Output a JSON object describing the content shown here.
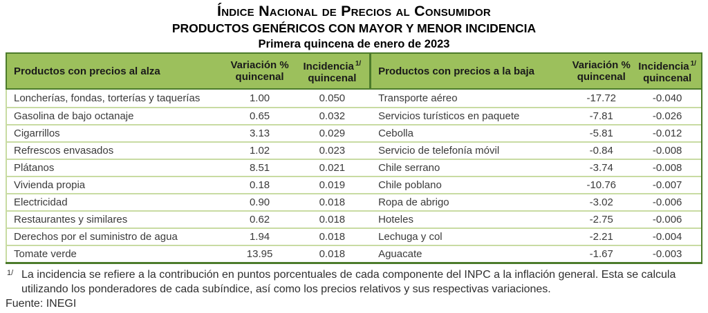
{
  "title": {
    "line1": "Índice Nacional de Precios al Consumidor",
    "line2": "PRODUCTOS GENÉRICOS CON MAYOR Y MENOR INCIDENCIA",
    "line3": "Primera quincena de enero de 2023"
  },
  "headers": {
    "alza": "Productos con precios al alza",
    "baja": "Productos con precios a la baja",
    "variacion_line1": "Variación %",
    "variacion_line2": "quincenal",
    "incidencia_line1": "Incidencia",
    "incidencia_sup": "1/",
    "incidencia_line2": "quincenal"
  },
  "rows": [
    {
      "alza": "Loncherías, fondas, torterías y taquerías",
      "alza_var": "1.00",
      "alza_inc": "0.050",
      "baja": "Transporte aéreo",
      "baja_var": "-17.72",
      "baja_inc": "-0.040"
    },
    {
      "alza": "Gasolina de bajo octanaje",
      "alza_var": "0.65",
      "alza_inc": "0.032",
      "baja": "Servicios turísticos en paquete",
      "baja_var": "-7.81",
      "baja_inc": "-0.026"
    },
    {
      "alza": "Cigarrillos",
      "alza_var": "3.13",
      "alza_inc": "0.029",
      "baja": "Cebolla",
      "baja_var": "-5.81",
      "baja_inc": "-0.012"
    },
    {
      "alza": "Refrescos envasados",
      "alza_var": "1.02",
      "alza_inc": "0.023",
      "baja": "Servicio de telefonía móvil",
      "baja_var": "-0.84",
      "baja_inc": "-0.008"
    },
    {
      "alza": "Plátanos",
      "alza_var": "8.51",
      "alza_inc": "0.021",
      "baja": "Chile serrano",
      "baja_var": "-3.74",
      "baja_inc": "-0.008"
    },
    {
      "alza": "Vivienda propia",
      "alza_var": "0.18",
      "alza_inc": "0.019",
      "baja": "Chile poblano",
      "baja_var": "-10.76",
      "baja_inc": "-0.007"
    },
    {
      "alza": "Electricidad",
      "alza_var": "0.90",
      "alza_inc": "0.018",
      "baja": "Ropa de abrigo",
      "baja_var": "-3.02",
      "baja_inc": "-0.006"
    },
    {
      "alza": "Restaurantes y similares",
      "alza_var": "0.62",
      "alza_inc": "0.018",
      "baja": "Hoteles",
      "baja_var": "-2.75",
      "baja_inc": "-0.006"
    },
    {
      "alza": "Derechos por el suministro de agua",
      "alza_var": "1.94",
      "alza_inc": "0.018",
      "baja": "Lechuga y col",
      "baja_var": "-2.21",
      "baja_inc": "-0.004"
    },
    {
      "alza": "Tomate verde",
      "alza_var": "13.95",
      "alza_inc": "0.018",
      "baja": "Aguacate",
      "baja_var": "-1.67",
      "baja_inc": "-0.003"
    }
  ],
  "footnote": {
    "marker": "1/",
    "text": "La incidencia se refiere a la contribución en puntos porcentuales de cada componente del INPC a la inflación general. Esta se calcula utilizando los ponderadores de cada subíndice, así como los precios relativos y sus respectivas variaciones.",
    "source": "Fuente: INEGI"
  },
  "colors": {
    "header_bg": "#9CC05C",
    "border_dark": "#4C7B2B",
    "row_line": "#C8DBA2",
    "text": "#3A3A3A"
  }
}
